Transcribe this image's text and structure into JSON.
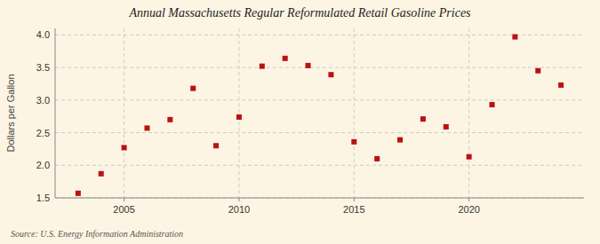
{
  "chart_data": {
    "type": "scatter",
    "title": "Annual Massachusetts Regular Reformulated Retail Gasoline Prices",
    "y_label": "Dollars per Gallon",
    "annotations": [
      "Source: U.S. Energy Information Administration"
    ],
    "x": [
      2003,
      2004,
      2005,
      2006,
      2007,
      2008,
      2009,
      2010,
      2011,
      2012,
      2013,
      2014,
      2015,
      2016,
      2017,
      2018,
      2019,
      2020,
      2021,
      2022,
      2023,
      2024
    ],
    "values": [
      1.57,
      1.87,
      2.27,
      2.57,
      2.7,
      3.18,
      2.3,
      2.74,
      3.52,
      3.64,
      3.53,
      3.39,
      2.36,
      2.1,
      2.39,
      2.71,
      2.59,
      2.13,
      2.93,
      3.97,
      3.45,
      3.23
    ],
    "color": "#bb1111",
    "marker": "square",
    "grid": true,
    "xlim": [
      2002.0,
      2025.0
    ],
    "xticks": [
      2005,
      2010,
      2015,
      2020
    ],
    "ylim": [
      1.5,
      4.1
    ],
    "yticks": [
      1.5,
      {
        "value": 2.0,
        "label": "2.0"
      },
      2.5,
      {
        "value": 3.0,
        "label": "3.0"
      },
      3.5,
      {
        "value": 4.0,
        "label": "4.0"
      }
    ]
  }
}
